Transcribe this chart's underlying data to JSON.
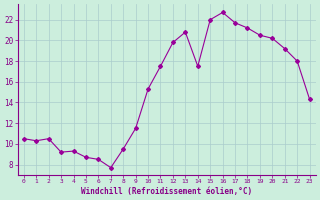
{
  "x": [
    0,
    1,
    2,
    3,
    4,
    5,
    6,
    7,
    8,
    9,
    10,
    11,
    12,
    13,
    14,
    15,
    16,
    17,
    18,
    19,
    20,
    21,
    22,
    23
  ],
  "y": [
    10.5,
    10.3,
    10.5,
    9.2,
    9.3,
    8.7,
    8.5,
    7.7,
    9.5,
    11.5,
    15.3,
    17.5,
    19.8,
    20.8,
    17.5,
    22.0,
    22.7,
    21.7,
    21.2,
    20.5,
    20.2,
    19.2,
    18.0,
    14.3
  ],
  "line_color": "#990099",
  "marker": "D",
  "marker_size": 2.0,
  "bg_color": "#cceedd",
  "grid_color": "#aacccc",
  "xlabel": "Windchill (Refroidissement éolien,°C)",
  "xlabel_color": "#880088",
  "tick_color": "#880088",
  "ylim": [
    7,
    23.5
  ],
  "yticks": [
    8,
    10,
    12,
    14,
    16,
    18,
    20,
    22
  ],
  "xticks": [
    0,
    1,
    2,
    3,
    4,
    5,
    6,
    7,
    8,
    9,
    10,
    11,
    12,
    13,
    14,
    15,
    16,
    17,
    18,
    19,
    20,
    21,
    22,
    23
  ]
}
